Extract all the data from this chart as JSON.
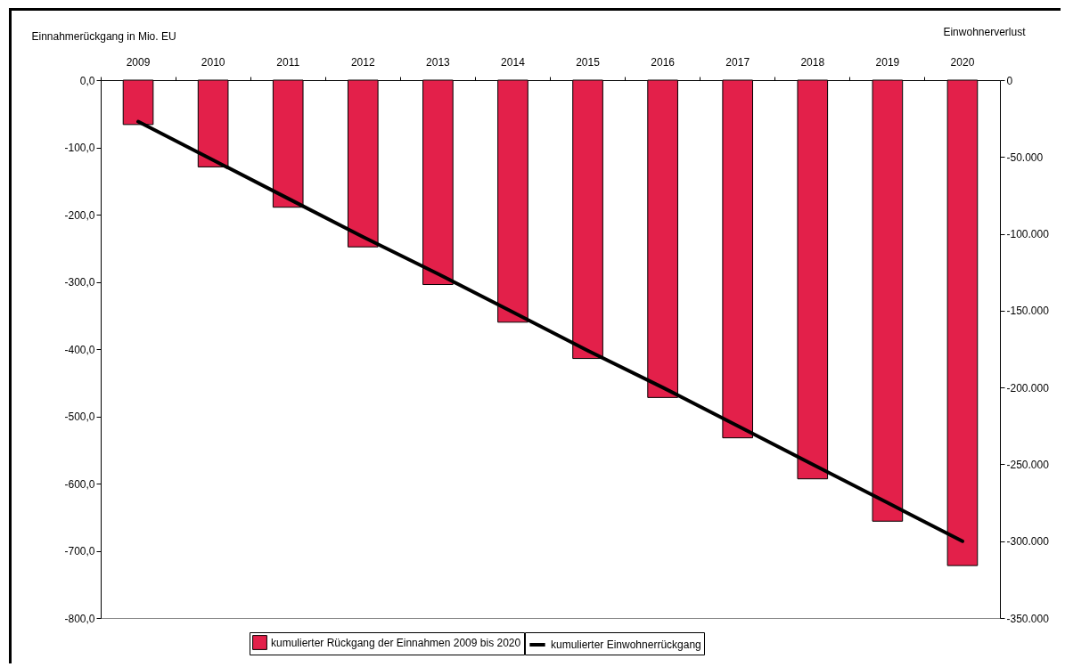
{
  "chart_data": {
    "type": "bar",
    "ylabel": "Einnahmerückgang in Mio. EU",
    "y2label": "Einwohnerverlust",
    "categories": [
      "2009",
      "2010",
      "2011",
      "2012",
      "2013",
      "2014",
      "2015",
      "2016",
      "2017",
      "2018",
      "2019",
      "2020"
    ],
    "series": [
      {
        "name": "kumulierter Rückgang der Einnahmen 2009 bis 2020",
        "color": "#e3204a",
        "values": [
          -66,
          -129,
          -189,
          -248,
          -304,
          -360,
          -414,
          -472,
          -532,
          -593,
          -656,
          -722
        ]
      },
      {
        "name": "kumulierter Einwohnerrückgang",
        "type": "line",
        "axis": "y2",
        "color": "#000000",
        "values": [
          -27000,
          -52000,
          -77000,
          -102000,
          -126000,
          -151000,
          -176000,
          -200000,
          -225000,
          -250000,
          -275000,
          -300000
        ]
      }
    ],
    "ylim": [
      -800,
      0
    ],
    "yticks": [
      {
        "value": 0,
        "label": "0,0"
      },
      {
        "value": -100,
        "label": "-100,0"
      },
      {
        "value": -200,
        "label": "-200,0"
      },
      {
        "value": -300,
        "label": "-300,0"
      },
      {
        "value": -400,
        "label": "-400,0"
      },
      {
        "value": -500,
        "label": "-500,0"
      },
      {
        "value": -600,
        "label": "-600,0"
      },
      {
        "value": -700,
        "label": "-700,0"
      },
      {
        "value": -800,
        "label": "-800,0"
      }
    ],
    "y2lim": [
      -350000,
      0
    ],
    "y2ticks": [
      0,
      {
        "value": -50000,
        "label": "-50.000"
      },
      {
        "value": -100000,
        "label": "-100.000"
      },
      {
        "value": -150000,
        "label": "-150.000"
      },
      {
        "value": -200000,
        "label": "-200.000"
      },
      {
        "value": -250000,
        "label": "-250.000"
      },
      {
        "value": -300000,
        "label": "-300.000"
      },
      {
        "value": -350000,
        "label": "-350.000"
      }
    ],
    "grid": false,
    "legend": "bottom"
  }
}
